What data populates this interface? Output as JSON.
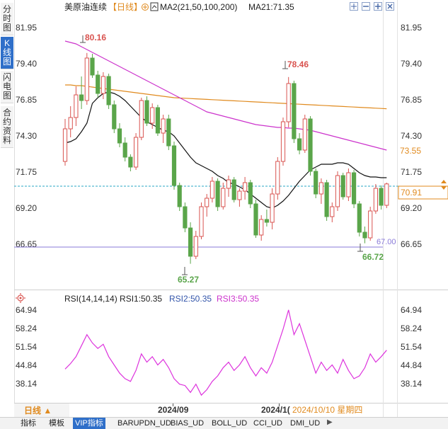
{
  "side_tabs": [
    "分时图",
    "K线图",
    "闪电图",
    "合约资料"
  ],
  "side_tab_active": 1,
  "header": {
    "title": "美原油连续",
    "period": "【日线】",
    "ma_label": "MA2(21,50,100,200)",
    "ma21_label": "MA21:71.35"
  },
  "rsi_header": {
    "main": "RSI(14,14,14) RSI1:50.35",
    "rsi2": "RSI2:50.35",
    "rsi3": "RSI3:50.35"
  },
  "price_ticks": [
    "81.95",
    "79.40",
    "76.85",
    "74.30",
    "71.75",
    "69.20",
    "66.65"
  ],
  "rsi_ticks": [
    "64.94",
    "58.24",
    "51.54",
    "44.84",
    "38.14"
  ],
  "price_markers": {
    "right_orange": "73.55",
    "current_price": "70.91",
    "support_line": "67.00"
  },
  "annotations": {
    "high1": "80.16",
    "high2": "78.46",
    "low1": "65.27",
    "low2": "66.72"
  },
  "x_labels": {
    "month1": "2024/09",
    "month2": "2024/1(",
    "cursor_date": "2024/10/10 星期四"
  },
  "period_button": "日线 ▲",
  "bottom_tabs": [
    "指标",
    "模板",
    "VIP指标",
    "BARUPDN_UD",
    "BIAS_UD",
    "BOLL_UD",
    "CCI_UD",
    "DMI_UD"
  ],
  "bottom_tab_active": 2,
  "colors": {
    "up": "#d9534f",
    "down": "#5aa54a",
    "ma21": "#111111",
    "ma50": "#cc33cc",
    "ma100": "#e08a1e",
    "rsi": "#dd33dd",
    "support": "#8a7ad8",
    "current": "#2aa7c5"
  },
  "chart_data": {
    "type": "candlestick",
    "price_range": [
      64.0,
      82.8
    ],
    "rsi_range": [
      32.0,
      67.0
    ],
    "candles": [
      {
        "o": 72.5,
        "h": 75.5,
        "l": 72.2,
        "c": 74.8
      },
      {
        "o": 74.8,
        "h": 76.4,
        "l": 74.2,
        "c": 75.6
      },
      {
        "o": 75.6,
        "h": 77.8,
        "l": 75.0,
        "c": 77.2
      },
      {
        "o": 77.2,
        "h": 78.5,
        "l": 76.2,
        "c": 76.8
      },
      {
        "o": 76.8,
        "h": 80.16,
        "l": 76.5,
        "c": 79.8
      },
      {
        "o": 79.8,
        "h": 80.1,
        "l": 78.4,
        "c": 78.6
      },
      {
        "o": 78.6,
        "h": 78.9,
        "l": 77.0,
        "c": 77.3
      },
      {
        "o": 77.3,
        "h": 78.8,
        "l": 76.9,
        "c": 78.5
      },
      {
        "o": 78.5,
        "h": 78.7,
        "l": 76.2,
        "c": 76.5
      },
      {
        "o": 76.5,
        "h": 76.8,
        "l": 74.5,
        "c": 74.8
      },
      {
        "o": 74.8,
        "h": 75.2,
        "l": 73.5,
        "c": 73.8
      },
      {
        "o": 73.8,
        "h": 74.2,
        "l": 72.5,
        "c": 72.8
      },
      {
        "o": 72.8,
        "h": 73.0,
        "l": 71.8,
        "c": 72.1
      },
      {
        "o": 72.1,
        "h": 74.5,
        "l": 71.9,
        "c": 74.2
      },
      {
        "o": 74.2,
        "h": 77.0,
        "l": 74.0,
        "c": 76.8
      },
      {
        "o": 76.8,
        "h": 77.1,
        "l": 75.0,
        "c": 75.2
      },
      {
        "o": 75.2,
        "h": 76.6,
        "l": 74.8,
        "c": 76.3
      },
      {
        "o": 76.3,
        "h": 76.5,
        "l": 74.3,
        "c": 74.5
      },
      {
        "o": 74.5,
        "h": 75.8,
        "l": 73.8,
        "c": 75.5
      },
      {
        "o": 75.5,
        "h": 75.8,
        "l": 73.3,
        "c": 73.6
      },
      {
        "o": 73.6,
        "h": 73.9,
        "l": 70.5,
        "c": 70.8
      },
      {
        "o": 70.8,
        "h": 71.0,
        "l": 69.0,
        "c": 69.3
      },
      {
        "o": 69.3,
        "h": 69.6,
        "l": 67.5,
        "c": 67.8
      },
      {
        "o": 67.8,
        "h": 68.2,
        "l": 65.27,
        "c": 65.8
      },
      {
        "o": 65.8,
        "h": 67.6,
        "l": 65.6,
        "c": 67.2
      },
      {
        "o": 67.2,
        "h": 69.6,
        "l": 67.0,
        "c": 69.3
      },
      {
        "o": 69.3,
        "h": 70.2,
        "l": 68.6,
        "c": 69.9
      },
      {
        "o": 69.9,
        "h": 71.4,
        "l": 69.6,
        "c": 71.1
      },
      {
        "o": 71.1,
        "h": 71.3,
        "l": 69.0,
        "c": 69.3
      },
      {
        "o": 69.3,
        "h": 71.0,
        "l": 69.1,
        "c": 70.6
      },
      {
        "o": 70.6,
        "h": 71.5,
        "l": 70.0,
        "c": 71.2
      },
      {
        "o": 71.2,
        "h": 71.4,
        "l": 69.6,
        "c": 69.8
      },
      {
        "o": 69.8,
        "h": 70.6,
        "l": 69.3,
        "c": 70.4
      },
      {
        "o": 70.4,
        "h": 71.4,
        "l": 69.8,
        "c": 71.0
      },
      {
        "o": 71.0,
        "h": 71.2,
        "l": 69.2,
        "c": 69.5
      },
      {
        "o": 69.5,
        "h": 69.8,
        "l": 67.1,
        "c": 67.3
      },
      {
        "o": 67.3,
        "h": 68.7,
        "l": 66.9,
        "c": 68.4
      },
      {
        "o": 68.4,
        "h": 69.1,
        "l": 67.9,
        "c": 68.2
      },
      {
        "o": 68.2,
        "h": 70.6,
        "l": 67.7,
        "c": 70.2
      },
      {
        "o": 70.2,
        "h": 72.8,
        "l": 69.8,
        "c": 72.5
      },
      {
        "o": 72.5,
        "h": 75.6,
        "l": 72.2,
        "c": 75.3
      },
      {
        "o": 75.3,
        "h": 78.46,
        "l": 74.9,
        "c": 78.0
      },
      {
        "o": 78.0,
        "h": 78.2,
        "l": 73.8,
        "c": 74.1
      },
      {
        "o": 74.1,
        "h": 74.5,
        "l": 73.0,
        "c": 73.3
      },
      {
        "o": 73.3,
        "h": 75.8,
        "l": 73.1,
        "c": 75.5
      },
      {
        "o": 75.5,
        "h": 75.7,
        "l": 71.5,
        "c": 71.8
      },
      {
        "o": 71.8,
        "h": 72.0,
        "l": 69.9,
        "c": 70.2
      },
      {
        "o": 70.2,
        "h": 71.3,
        "l": 69.5,
        "c": 71.0
      },
      {
        "o": 71.0,
        "h": 71.2,
        "l": 68.3,
        "c": 68.6
      },
      {
        "o": 68.6,
        "h": 69.6,
        "l": 68.2,
        "c": 69.3
      },
      {
        "o": 69.3,
        "h": 71.8,
        "l": 69.0,
        "c": 71.5
      },
      {
        "o": 71.5,
        "h": 71.7,
        "l": 69.8,
        "c": 70.0
      },
      {
        "o": 70.0,
        "h": 72.0,
        "l": 69.7,
        "c": 71.7
      },
      {
        "o": 71.7,
        "h": 71.9,
        "l": 69.2,
        "c": 69.5
      },
      {
        "o": 69.5,
        "h": 69.7,
        "l": 67.2,
        "c": 67.5
      },
      {
        "o": 67.5,
        "h": 67.9,
        "l": 66.72,
        "c": 67.1
      },
      {
        "o": 67.1,
        "h": 69.3,
        "l": 66.9,
        "c": 69.0
      },
      {
        "o": 69.0,
        "h": 70.9,
        "l": 68.8,
        "c": 70.6
      },
      {
        "o": 70.6,
        "h": 70.8,
        "l": 69.1,
        "c": 69.4
      },
      {
        "o": 69.4,
        "h": 71.0,
        "l": 69.2,
        "c": 70.91
      }
    ],
    "ma21": [
      73.8,
      73.9,
      74.1,
      74.6,
      75.2,
      76.6,
      77.0,
      77.3,
      77.4,
      77.3,
      77.1,
      76.8,
      76.4,
      76.0,
      75.6,
      75.3,
      75.1,
      74.9,
      74.7,
      74.6,
      74.3,
      73.8,
      73.3,
      72.8,
      72.4,
      72.2,
      72.0,
      71.8,
      71.5,
      71.3,
      71.0,
      70.9,
      70.7,
      70.5,
      70.2,
      69.9,
      69.6,
      69.3,
      69.2,
      69.4,
      69.7,
      70.1,
      70.6,
      71.1,
      71.5,
      71.9,
      72.1,
      72.3,
      72.3,
      72.3,
      72.4,
      72.4,
      72.3,
      72.0,
      71.7,
      71.5,
      71.4,
      71.4,
      71.35,
      71.35
    ],
    "ma50": [
      81.0,
      80.9,
      80.8,
      80.6,
      80.4,
      80.2,
      80.0,
      79.8,
      79.6,
      79.4,
      79.2,
      79.0,
      78.8,
      78.6,
      78.4,
      78.2,
      78.0,
      77.8,
      77.6,
      77.4,
      77.2,
      77.0,
      76.8,
      76.6,
      76.4,
      76.2,
      76.0,
      75.9,
      75.8,
      75.7,
      75.6,
      75.5,
      75.4,
      75.3,
      75.2,
      75.1,
      75.05,
      75.0,
      74.95,
      74.9,
      74.9,
      74.85,
      74.85,
      74.8,
      74.75,
      74.7,
      74.6,
      74.5,
      74.4,
      74.3,
      74.2,
      74.1,
      74.0,
      73.9,
      73.8,
      73.7,
      73.6,
      73.5,
      73.4,
      73.3
    ],
    "ma100": [
      77.9,
      77.9,
      77.85,
      77.85,
      77.8,
      77.75,
      77.7,
      77.65,
      77.6,
      77.55,
      77.5,
      77.45,
      77.4,
      77.35,
      77.3,
      77.25,
      77.2,
      77.15,
      77.1,
      77.05,
      77.0,
      76.98,
      76.96,
      76.94,
      76.92,
      76.9,
      76.88,
      76.86,
      76.84,
      76.82,
      76.8,
      76.78,
      76.76,
      76.74,
      76.72,
      76.7,
      76.68,
      76.66,
      76.64,
      76.62,
      76.6,
      76.58,
      76.56,
      76.54,
      76.52,
      76.5,
      76.48,
      76.46,
      76.44,
      76.42,
      76.4,
      76.38,
      76.36,
      76.34,
      76.32,
      76.3,
      76.28,
      76.26,
      76.24,
      76.22
    ],
    "rsi": [
      43.5,
      45.5,
      48.0,
      52.0,
      56.0,
      53.0,
      51.0,
      52.5,
      48.0,
      45.0,
      42.0,
      40.0,
      39.0,
      43.0,
      49.0,
      46.0,
      48.0,
      45.0,
      47.0,
      44.0,
      40.0,
      38.0,
      37.5,
      35.0,
      38.0,
      34.0,
      36.0,
      39.0,
      41.0,
      44.0,
      46.0,
      43.0,
      45.0,
      48.0,
      44.0,
      41.0,
      44.0,
      42.0,
      46.0,
      52.0,
      58.0,
      65.0,
      56.0,
      60.0,
      54.0,
      48.0,
      42.0,
      46.0,
      43.0,
      45.0,
      42.0,
      47.0,
      43.0,
      40.0,
      41.0,
      44.0,
      49.0,
      46.0,
      48.0,
      50.35
    ]
  }
}
